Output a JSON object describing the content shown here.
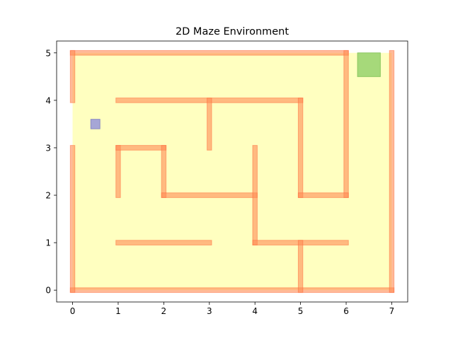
{
  "chart_data": {
    "type": "scatter",
    "title": "2D Maze Environment",
    "xlabel": "",
    "ylabel": "",
    "xlim": [
      -0.35,
      7.35
    ],
    "ylim": [
      -0.25,
      5.25
    ],
    "xticks": [
      0,
      1,
      2,
      3,
      4,
      5,
      6,
      7
    ],
    "yticks": [
      0,
      1,
      2,
      3,
      4,
      5
    ],
    "grid": false,
    "colors": {
      "floor": "#ffffc0",
      "wall": "#ff8c55",
      "wall_edge": "#ff6a3a",
      "agent": "#a6a6d6",
      "goal": "#a6d97a"
    },
    "floor": {
      "x": [
        0,
        7
      ],
      "y": [
        0,
        5
      ]
    },
    "walls": [
      {
        "x1": 0,
        "y1": 0,
        "x2": 7,
        "y2": 0
      },
      {
        "x1": 0,
        "y1": 5,
        "x2": 6,
        "y2": 5
      },
      {
        "x1": 0,
        "y1": 0,
        "x2": 0,
        "y2": 3
      },
      {
        "x1": 0,
        "y1": 4,
        "x2": 0,
        "y2": 5
      },
      {
        "x1": 7,
        "y1": 0,
        "x2": 7,
        "y2": 5
      },
      {
        "x1": 6,
        "y1": 2,
        "x2": 6,
        "y2": 5
      },
      {
        "x1": 1,
        "y1": 4,
        "x2": 5,
        "y2": 4
      },
      {
        "x1": 3,
        "y1": 3,
        "x2": 3,
        "y2": 4
      },
      {
        "x1": 5,
        "y1": 2,
        "x2": 5,
        "y2": 4
      },
      {
        "x1": 5,
        "y1": 2,
        "x2": 6,
        "y2": 2
      },
      {
        "x1": 1,
        "y1": 2,
        "x2": 1,
        "y2": 3
      },
      {
        "x1": 1,
        "y1": 3,
        "x2": 2,
        "y2": 3
      },
      {
        "x1": 2,
        "y1": 2,
        "x2": 2,
        "y2": 3
      },
      {
        "x1": 2,
        "y1": 2,
        "x2": 4,
        "y2": 2
      },
      {
        "x1": 4,
        "y1": 1,
        "x2": 4,
        "y2": 3
      },
      {
        "x1": 4,
        "y1": 1,
        "x2": 6,
        "y2": 1
      },
      {
        "x1": 1,
        "y1": 1,
        "x2": 3,
        "y2": 1
      },
      {
        "x1": 5,
        "y1": 0,
        "x2": 5,
        "y2": 1
      }
    ],
    "agent": {
      "x": [
        0.4,
        0.6
      ],
      "y": [
        3.4,
        3.6
      ]
    },
    "goal": {
      "x": [
        6.25,
        6.75
      ],
      "y": [
        4.5,
        5.0
      ]
    }
  }
}
